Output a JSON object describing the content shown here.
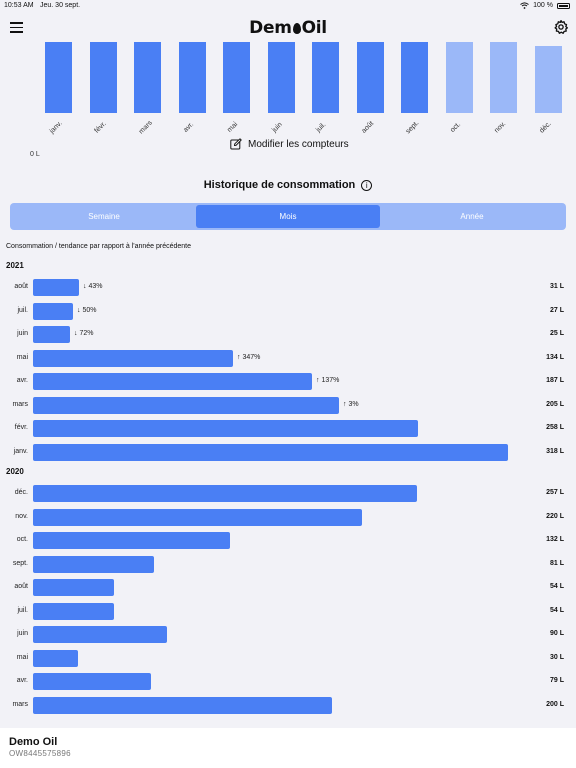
{
  "status_bar": {
    "time": "10:53 AM",
    "date": "Jeu. 30 sept.",
    "battery": "100 %"
  },
  "header": {
    "brand_prefix": "Dem",
    "brand_suffix": "Oil"
  },
  "monthly_chart": {
    "zero_label": "0 L",
    "months": [
      "janv.",
      "févr.",
      "mars",
      "avr.",
      "mai",
      "juin",
      "juil.",
      "août",
      "sept.",
      "oct.",
      "nov.",
      "déc."
    ],
    "status": [
      "past",
      "past",
      "past",
      "past",
      "past",
      "past",
      "past",
      "past",
      "past",
      "future",
      "future",
      "future"
    ],
    "colors": {
      "past": "#4a7ff4",
      "future": "#9bb8f8"
    }
  },
  "edit_meters_label": "Modifier les compteurs",
  "history": {
    "title": "Historique de consommation",
    "tabs": [
      "Semaine",
      "Mois",
      "Année"
    ],
    "active_tab": "Mois",
    "subtitle": "Consommation / tendance par rapport à l'année précédente"
  },
  "chart_data": {
    "type": "bar",
    "orientation": "horizontal",
    "unit": "L",
    "groups": [
      {
        "year": "2021",
        "rows": [
          {
            "month": "août",
            "value": 31,
            "label": "31 L",
            "trend": "↓ 43%"
          },
          {
            "month": "juil.",
            "value": 27,
            "label": "27 L",
            "trend": "↓ 50%"
          },
          {
            "month": "juin",
            "value": 25,
            "label": "25 L",
            "trend": "↓ 72%"
          },
          {
            "month": "mai",
            "value": 134,
            "label": "134 L",
            "trend": "↑ 347%"
          },
          {
            "month": "avr.",
            "value": 187,
            "label": "187 L",
            "trend": "↑ 137%"
          },
          {
            "month": "mars",
            "value": 205,
            "label": "205 L",
            "trend": "↑ 3%"
          },
          {
            "month": "févr.",
            "value": 258,
            "label": "258 L",
            "trend": ""
          },
          {
            "month": "janv.",
            "value": 318,
            "label": "318 L",
            "trend": ""
          }
        ]
      },
      {
        "year": "2020",
        "rows": [
          {
            "month": "déc.",
            "value": 257,
            "label": "257 L",
            "trend": ""
          },
          {
            "month": "nov.",
            "value": 220,
            "label": "220 L",
            "trend": ""
          },
          {
            "month": "oct.",
            "value": 132,
            "label": "132 L",
            "trend": ""
          },
          {
            "month": "sept.",
            "value": 81,
            "label": "81 L",
            "trend": ""
          },
          {
            "month": "août",
            "value": 54,
            "label": "54 L",
            "trend": ""
          },
          {
            "month": "juil.",
            "value": 54,
            "label": "54 L",
            "trend": ""
          },
          {
            "month": "juin",
            "value": 90,
            "label": "90 L",
            "trend": ""
          },
          {
            "month": "mai",
            "value": 30,
            "label": "30 L",
            "trend": ""
          },
          {
            "month": "avr.",
            "value": 79,
            "label": "79 L",
            "trend": ""
          },
          {
            "month": "mars",
            "value": 200,
            "label": "200 L",
            "trend": ""
          }
        ]
      }
    ]
  },
  "footer": {
    "name": "Demo Oil",
    "id": "OW8445575896"
  },
  "colors": {
    "accent": "#4a7ff4",
    "accent_light": "#9bb8f8",
    "background": "#f2f2f7"
  }
}
